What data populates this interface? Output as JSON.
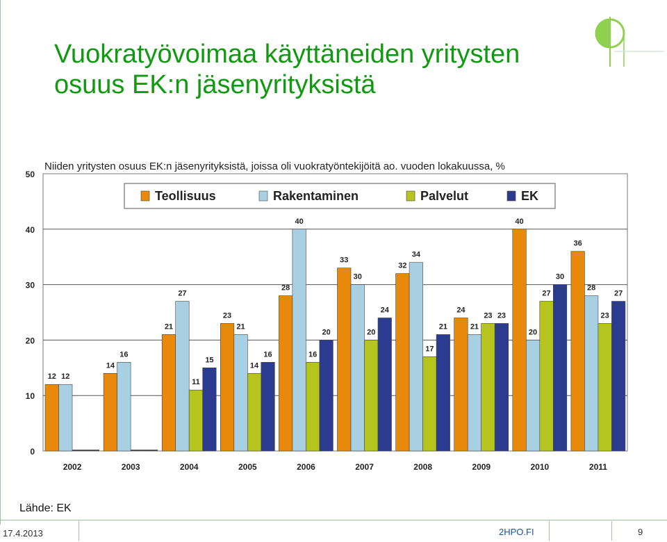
{
  "slide": {
    "title_line1": "Vuokratyövoimaa käyttäneiden yritysten",
    "title_line2": "osuus EK:n jäsenyrityksistä",
    "source": "Lähde: EK",
    "date": "17.4.2013",
    "site": "2HPO.FI",
    "page_number": "9"
  },
  "colors": {
    "title": "#119a11",
    "rule": "#9fc59f"
  },
  "chart_data": {
    "type": "bar",
    "title": "Niiden yritysten osuus EK:n jäsenyrityksistä, joissa oli vuokratyöntekijöitä ao. vuoden lokakuussa, %",
    "categories": [
      "2002",
      "2003",
      "2004",
      "2005",
      "2006",
      "2007",
      "2008",
      "2009",
      "2010",
      "2011"
    ],
    "series": [
      {
        "name": "Teollisuus",
        "color": "#e8890c",
        "values": [
          12,
          14,
          21,
          23,
          28,
          33,
          32,
          24,
          40,
          36
        ]
      },
      {
        "name": "Rakentaminen",
        "color": "#a9cfe3",
        "values": [
          12,
          16,
          27,
          21,
          40,
          30,
          34,
          21,
          20,
          28
        ]
      },
      {
        "name": "Palvelut",
        "color": "#b5c51e",
        "values": [
          null,
          null,
          11,
          14,
          16,
          20,
          17,
          23,
          27,
          23
        ]
      },
      {
        "name": "EK",
        "color": "#2b3b8f",
        "values": [
          null,
          null,
          15,
          16,
          20,
          24,
          21,
          23,
          30,
          27
        ]
      }
    ],
    "ylim": [
      0,
      50
    ],
    "yticks": [
      0,
      10,
      20,
      30,
      40,
      50
    ],
    "grid": true,
    "legend_position": "top"
  }
}
